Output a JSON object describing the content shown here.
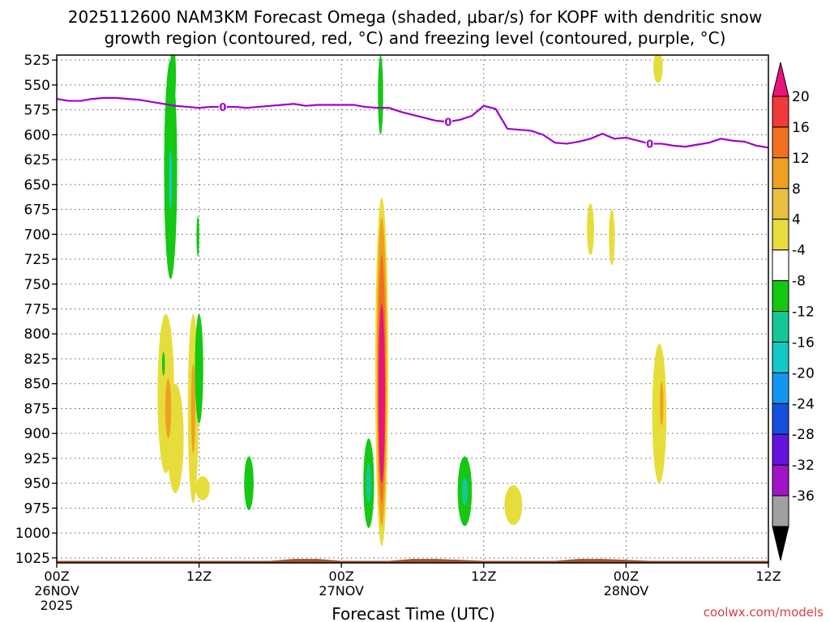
{
  "chart_data": {
    "type": "heatmap",
    "title_lines": [
      "2025112600 NAM3KM Forecast Omega (shaded, μbar/s) for KOPF with dendritic snow",
      "growth region (contoured, red, °C) and freezing level (contoured, purple, °C)"
    ],
    "xlabel": "Forecast Time (UTC)",
    "x_unit": "forecast hour",
    "xlim": [
      0,
      60
    ],
    "x_ticks": [
      {
        "x": 0,
        "l1": "00Z",
        "l2": "26NOV",
        "l3": "2025"
      },
      {
        "x": 12,
        "l1": "12Z",
        "l2": "",
        "l3": ""
      },
      {
        "x": 24,
        "l1": "00Z",
        "l2": "27NOV",
        "l3": ""
      },
      {
        "x": 36,
        "l1": "12Z",
        "l2": "",
        "l3": ""
      },
      {
        "x": 48,
        "l1": "00Z",
        "l2": "28NOV",
        "l3": ""
      },
      {
        "x": 60,
        "l1": "12Z",
        "l2": "",
        "l3": ""
      }
    ],
    "ylabel": "",
    "y_unit": "hPa",
    "ylim": [
      520,
      1030
    ],
    "y_ticks": [
      "525",
      "550",
      "575",
      "600",
      "625",
      "650",
      "675",
      "700",
      "725",
      "750",
      "775",
      "800",
      "825",
      "850",
      "875",
      "900",
      "925",
      "950",
      "975",
      "1000",
      "1025"
    ],
    "colorbar": {
      "labels": [
        "20",
        "16",
        "12",
        "8",
        "4",
        "-4",
        "-8",
        "-12",
        "-16",
        "-20",
        "-24",
        "-28",
        "-32",
        "-36"
      ],
      "colors": [
        "#e8157a",
        "#f03a3a",
        "#f07020",
        "#f0a020",
        "#e8c040",
        "#e6dd3a",
        "#ffffff",
        "#14c814",
        "#14c896",
        "#14c8c8",
        "#1496f0",
        "#1450dc",
        "#6414dc",
        "#a014c8",
        "#a0a0a0",
        "#000000"
      ]
    },
    "omega_patches": [
      {
        "x": 9.5,
        "cx": 9.6,
        "y": 635,
        "rx": 0.55,
        "ry": 110,
        "color": "#14c814"
      },
      {
        "x": 9.6,
        "cx": 9.6,
        "y": 645,
        "rx": 0.12,
        "ry": 30,
        "color": "#14c8c8"
      },
      {
        "x": 9.8,
        "cx": 9.8,
        "y": 540,
        "rx": 0.25,
        "ry": 30,
        "color": "#14c814"
      },
      {
        "x": 11.9,
        "cx": 11.9,
        "y": 702,
        "rx": 0.12,
        "ry": 20,
        "color": "#14c814"
      },
      {
        "x": 27.3,
        "cx": 27.3,
        "y": 560,
        "rx": 0.22,
        "ry": 40,
        "color": "#14c814"
      },
      {
        "x": 9.2,
        "cx": 9.2,
        "y": 860,
        "rx": 0.7,
        "ry": 80,
        "color": "#e6dd3a"
      },
      {
        "x": 10.0,
        "cx": 10.0,
        "y": 905,
        "rx": 0.7,
        "ry": 55,
        "color": "#e6dd3a"
      },
      {
        "x": 11.5,
        "cx": 11.5,
        "y": 875,
        "rx": 0.45,
        "ry": 95,
        "color": "#e6dd3a"
      },
      {
        "x": 12.3,
        "cx": 12.3,
        "y": 955,
        "rx": 0.6,
        "ry": 12,
        "color": "#e6dd3a"
      },
      {
        "x": 9.4,
        "cx": 9.4,
        "y": 875,
        "rx": 0.25,
        "ry": 30,
        "color": "#f0a020"
      },
      {
        "x": 11.5,
        "cx": 11.5,
        "y": 875,
        "rx": 0.18,
        "ry": 45,
        "color": "#f0a020"
      },
      {
        "x": 9.0,
        "cx": 9.0,
        "y": 830,
        "rx": 0.12,
        "ry": 12,
        "color": "#14c814"
      },
      {
        "x": 12.0,
        "cx": 12.0,
        "y": 835,
        "rx": 0.35,
        "ry": 55,
        "color": "#14c814"
      },
      {
        "x": 16.2,
        "cx": 16.2,
        "y": 950,
        "rx": 0.4,
        "ry": 27,
        "color": "#14c814"
      },
      {
        "x": 27.4,
        "cx": 27.4,
        "y": 838,
        "rx": 0.55,
        "ry": 175,
        "color": "#e6dd3a"
      },
      {
        "x": 27.4,
        "cx": 27.4,
        "y": 838,
        "rx": 0.42,
        "ry": 155,
        "color": "#f0a020"
      },
      {
        "x": 27.4,
        "cx": 27.4,
        "y": 845,
        "rx": 0.32,
        "ry": 125,
        "color": "#f07020"
      },
      {
        "x": 27.4,
        "cx": 27.4,
        "y": 860,
        "rx": 0.28,
        "ry": 90,
        "color": "#e8157a"
      },
      {
        "x": 26.3,
        "cx": 26.3,
        "y": 950,
        "rx": 0.45,
        "ry": 45,
        "color": "#14c814"
      },
      {
        "x": 26.3,
        "cx": 26.3,
        "y": 950,
        "rx": 0.22,
        "ry": 20,
        "color": "#14c896"
      },
      {
        "x": 34.4,
        "cx": 34.4,
        "y": 958,
        "rx": 0.6,
        "ry": 35,
        "color": "#14c814"
      },
      {
        "x": 34.4,
        "cx": 34.4,
        "y": 958,
        "rx": 0.25,
        "ry": 14,
        "color": "#14c896"
      },
      {
        "x": 38.5,
        "cx": 38.5,
        "y": 972,
        "rx": 0.75,
        "ry": 20,
        "color": "#e6dd3a"
      },
      {
        "x": 45.0,
        "cx": 45.0,
        "y": 695,
        "rx": 0.3,
        "ry": 26,
        "color": "#e6dd3a"
      },
      {
        "x": 46.8,
        "cx": 46.8,
        "y": 703,
        "rx": 0.25,
        "ry": 28,
        "color": "#e6dd3a"
      },
      {
        "x": 50.8,
        "cx": 50.8,
        "y": 880,
        "rx": 0.6,
        "ry": 70,
        "color": "#e6dd3a"
      },
      {
        "x": 51.0,
        "cx": 51.0,
        "y": 870,
        "rx": 0.15,
        "ry": 22,
        "color": "#f0a020"
      },
      {
        "x": 50.7,
        "cx": 50.7,
        "y": 532,
        "rx": 0.4,
        "ry": 16,
        "color": "#e6dd3a"
      }
    ],
    "freezing_level": {
      "label": "0",
      "color": "#a000c8",
      "x": [
        0,
        1,
        2,
        3,
        4,
        5,
        6,
        7,
        8,
        9,
        10,
        11,
        12,
        13,
        14,
        15,
        16,
        17,
        18,
        19,
        20,
        21,
        22,
        23,
        24,
        25,
        26,
        27,
        28,
        29,
        30,
        31,
        32,
        33,
        34,
        35,
        36,
        37,
        38,
        39,
        40,
        41,
        42,
        43,
        44,
        45,
        46,
        47,
        48,
        49,
        50,
        51,
        52,
        53,
        54,
        55,
        56,
        57,
        58,
        59,
        60
      ],
      "y": [
        564,
        566,
        566,
        564,
        563,
        563,
        564,
        565,
        567,
        569,
        571,
        572,
        573,
        572,
        572,
        572,
        573,
        572,
        571,
        570,
        569,
        571,
        570,
        570,
        570,
        570,
        572,
        573,
        573,
        577,
        580,
        583,
        586,
        587,
        585,
        581,
        571,
        574,
        594,
        595,
        596,
        600,
        608,
        609,
        607,
        604,
        599,
        604,
        603,
        606,
        609,
        609,
        611,
        612,
        610,
        608,
        604,
        606,
        607,
        611,
        613
      ],
      "label_points": [
        14,
        33,
        50
      ]
    },
    "terrain": {
      "color": "#a0522d",
      "x": [
        0,
        18,
        20,
        22,
        24,
        28,
        30,
        32,
        34,
        36,
        38,
        42,
        44,
        46,
        48,
        50,
        52,
        60
      ],
      "top": [
        1028,
        1028,
        1026,
        1026,
        1028,
        1028,
        1026,
        1026,
        1027,
        1028,
        1028,
        1028,
        1026,
        1026,
        1027,
        1028,
        1028,
        1028
      ]
    }
  },
  "credit": "coolwx.com/models"
}
